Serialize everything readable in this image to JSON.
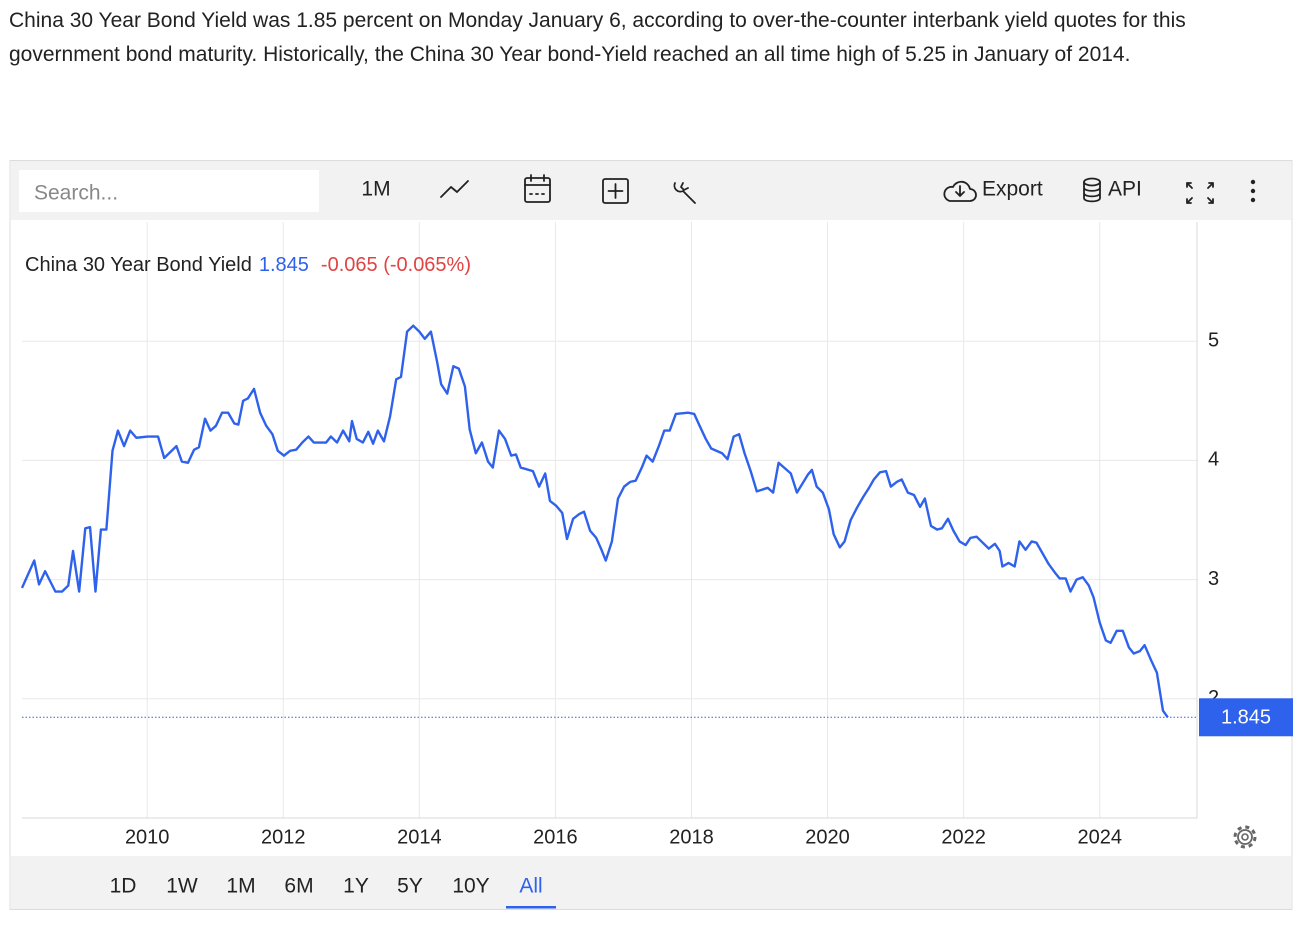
{
  "paragraph": "China 30 Year Bond Yield was 1.85 percent on Monday January 6, according to over-the-counter interbank yield quotes for this government bond maturity. Historically, the China 30 Year bond-Yield reached an all time high of 5.25 in January of 2014.",
  "toolbar": {
    "search_placeholder": "Search...",
    "interval": "1M",
    "export": "Export",
    "api": "API"
  },
  "ranges": [
    "1D",
    "1W",
    "1M",
    "6M",
    "1Y",
    "5Y",
    "10Y",
    "All"
  ],
  "active_range": "All",
  "chart_data": {
    "type": "line",
    "last_value": 1.845,
    "change": "-0.065 (-0.065%)",
    "value_color": "#2f62ec",
    "change_color": "#e04343",
    "xlim": [
      2008.16,
      2025.43
    ],
    "xticks": [
      2010,
      2012,
      2014,
      2016,
      2018,
      2020,
      2022,
      2024
    ],
    "ylim": [
      1,
      6
    ],
    "yticks": [
      2,
      3,
      4,
      5
    ],
    "grid": true,
    "x": [
      2008.16,
      2008.34,
      2008.41,
      2008.5,
      2008.65,
      2008.75,
      2008.84,
      2008.91,
      2009.0,
      2009.09,
      2009.16,
      2009.24,
      2009.32,
      2009.4,
      2009.49,
      2009.57,
      2009.66,
      2009.75,
      2009.84,
      2010.01,
      2010.16,
      2010.25,
      2010.43,
      2010.51,
      2010.6,
      2010.69,
      2010.76,
      2010.85,
      2010.93,
      2011.01,
      2011.1,
      2011.19,
      2011.28,
      2011.34,
      2011.41,
      2011.48,
      2011.57,
      2011.66,
      2011.75,
      2011.84,
      2011.92,
      2012.01,
      2012.1,
      2012.19,
      2012.28,
      2012.37,
      2012.45,
      2012.63,
      2012.7,
      2012.79,
      2012.88,
      2012.97,
      2013.01,
      2013.08,
      2013.17,
      2013.25,
      2013.32,
      2013.39,
      2013.48,
      2013.57,
      2013.66,
      2013.73,
      2013.82,
      2013.91,
      2014.0,
      2014.08,
      2014.17,
      2014.26,
      2014.32,
      2014.41,
      2014.5,
      2014.58,
      2014.67,
      2014.74,
      2014.83,
      2014.92,
      2015.01,
      2015.08,
      2015.17,
      2015.26,
      2015.35,
      2015.42,
      2015.49,
      2015.67,
      2015.76,
      2015.85,
      2015.92,
      2016.01,
      2016.1,
      2016.17,
      2016.26,
      2016.35,
      2016.42,
      2016.51,
      2016.6,
      2016.67,
      2016.74,
      2016.83,
      2016.92,
      2017.01,
      2017.1,
      2017.18,
      2017.27,
      2017.34,
      2017.43,
      2017.52,
      2017.6,
      2017.68,
      2017.77,
      2017.95,
      2018.04,
      2018.12,
      2018.21,
      2018.29,
      2018.45,
      2018.53,
      2018.62,
      2018.7,
      2018.78,
      2018.87,
      2018.96,
      2019.12,
      2019.2,
      2019.28,
      2019.46,
      2019.55,
      2019.71,
      2019.77,
      2019.84,
      2019.93,
      2020.02,
      2020.09,
      2020.18,
      2020.25,
      2020.34,
      2020.43,
      2020.52,
      2020.61,
      2020.68,
      2020.77,
      2020.86,
      2020.93,
      2021.02,
      2021.09,
      2021.18,
      2021.27,
      2021.36,
      2021.43,
      2021.52,
      2021.61,
      2021.68,
      2021.77,
      2021.85,
      2021.94,
      2022.03,
      2022.1,
      2022.19,
      2022.37,
      2022.46,
      2022.53,
      2022.57,
      2022.66,
      2022.75,
      2022.82,
      2022.91,
      2023.0,
      2023.07,
      2023.16,
      2023.25,
      2023.34,
      2023.41,
      2023.5,
      2023.57,
      2023.66,
      2023.75,
      2023.84,
      2023.91,
      2024.0,
      2024.09,
      2024.16,
      2024.25,
      2024.34,
      2024.43,
      2024.5,
      2024.59,
      2024.66,
      2024.75,
      2024.84,
      2024.93,
      2025.0
    ],
    "series": [
      {
        "name": "China 30 Year Bond Yield",
        "color": "#2f62ec",
        "values": [
          2.93,
          3.16,
          2.96,
          3.07,
          2.9,
          2.9,
          2.95,
          3.24,
          2.9,
          3.43,
          3.44,
          2.9,
          3.42,
          3.42,
          4.08,
          4.25,
          4.12,
          4.25,
          4.19,
          4.2,
          4.2,
          4.02,
          4.12,
          3.99,
          3.98,
          4.09,
          4.11,
          4.35,
          4.25,
          4.29,
          4.4,
          4.4,
          4.31,
          4.3,
          4.5,
          4.52,
          4.6,
          4.4,
          4.29,
          4.22,
          4.08,
          4.04,
          4.08,
          4.09,
          4.15,
          4.2,
          4.15,
          4.15,
          4.2,
          4.15,
          4.25,
          4.16,
          4.33,
          4.18,
          4.15,
          4.24,
          4.14,
          4.25,
          4.16,
          4.37,
          4.68,
          4.7,
          5.08,
          5.13,
          5.08,
          5.02,
          5.08,
          4.83,
          4.64,
          4.56,
          4.79,
          4.77,
          4.62,
          4.26,
          4.06,
          4.15,
          3.99,
          3.94,
          4.25,
          4.18,
          4.04,
          4.05,
          3.94,
          3.91,
          3.78,
          3.89,
          3.66,
          3.62,
          3.56,
          3.34,
          3.51,
          3.55,
          3.57,
          3.41,
          3.35,
          3.26,
          3.16,
          3.32,
          3.68,
          3.78,
          3.82,
          3.83,
          3.94,
          4.04,
          3.99,
          4.12,
          4.25,
          4.25,
          4.39,
          4.4,
          4.39,
          4.29,
          4.18,
          4.1,
          4.06,
          4.01,
          4.2,
          4.22,
          4.06,
          3.91,
          3.74,
          3.77,
          3.73,
          3.98,
          3.89,
          3.73,
          3.88,
          3.92,
          3.78,
          3.73,
          3.59,
          3.38,
          3.27,
          3.32,
          3.5,
          3.6,
          3.69,
          3.77,
          3.84,
          3.9,
          3.91,
          3.78,
          3.82,
          3.84,
          3.73,
          3.71,
          3.61,
          3.68,
          3.45,
          3.42,
          3.43,
          3.51,
          3.41,
          3.32,
          3.29,
          3.35,
          3.36,
          3.26,
          3.3,
          3.24,
          3.11,
          3.14,
          3.11,
          3.32,
          3.25,
          3.32,
          3.31,
          3.22,
          3.13,
          3.06,
          3.01,
          3.01,
          2.9,
          3.0,
          3.02,
          2.95,
          2.85,
          2.64,
          2.49,
          2.47,
          2.57,
          2.57,
          2.43,
          2.38,
          2.4,
          2.45,
          2.33,
          2.22,
          1.9,
          1.845
        ]
      }
    ]
  }
}
